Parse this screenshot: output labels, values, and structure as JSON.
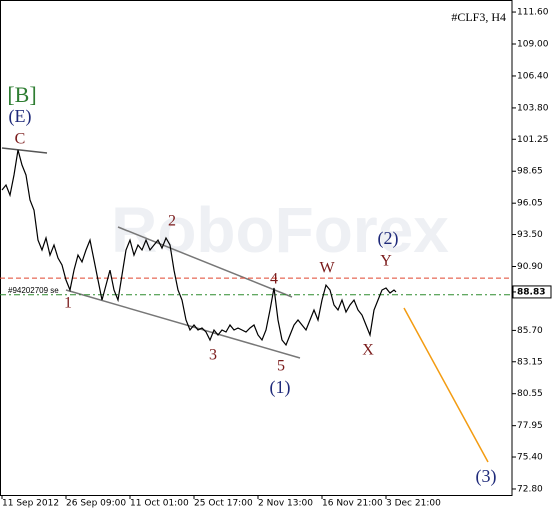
{
  "chart_data": {
    "type": "line",
    "title": "#CLF3, H4",
    "watermark": "RoboForex",
    "order_label": "#94202709 se",
    "color": "#000000",
    "x": [
      2,
      6,
      10,
      14,
      18,
      22,
      26,
      30,
      34,
      38,
      42,
      46,
      50,
      54,
      58,
      62,
      66,
      70,
      74,
      78,
      82,
      86,
      90,
      94,
      98,
      102,
      106,
      110,
      114,
      118,
      122,
      126,
      130,
      134,
      138,
      142,
      146,
      150,
      154,
      158,
      162,
      166,
      170,
      174,
      178,
      182,
      186,
      190,
      194,
      198,
      202,
      206,
      210,
      214,
      218,
      222,
      226,
      230,
      234,
      238,
      242,
      246,
      250,
      254,
      258,
      262,
      266,
      270,
      274,
      278,
      282,
      286,
      290,
      294,
      298,
      302,
      306,
      310,
      314,
      318,
      322,
      326,
      330,
      334,
      338,
      342,
      346,
      350,
      354,
      358,
      362,
      366,
      370,
      374,
      378,
      382,
      386,
      390,
      394,
      396
    ],
    "values": [
      97.12,
      97.53,
      96.71,
      98.34,
      100.38,
      99.16,
      98.34,
      96.31,
      95.49,
      93.05,
      92.24,
      93.22,
      91.83,
      92.65,
      91.59,
      91.02,
      89.8,
      88.99,
      90.61,
      91.83,
      91.27,
      92.24,
      93.05,
      91.43,
      89.8,
      88.17,
      89.39,
      90.61,
      88.99,
      88.17,
      90.21,
      92.24,
      93.05,
      91.83,
      92.65,
      92.24,
      93.05,
      92.24,
      92.65,
      93.05,
      92.4,
      93.22,
      92.65,
      90.61,
      88.99,
      88.17,
      86.55,
      85.73,
      86.14,
      85.73,
      85.9,
      85.57,
      84.92,
      85.73,
      85.33,
      85.73,
      85.57,
      86.14,
      85.73,
      85.9,
      85.73,
      85.57,
      85.9,
      86.14,
      85.33,
      84.92,
      85.73,
      87.36,
      89.15,
      86.55,
      84.92,
      84.51,
      85.33,
      86.14,
      86.55,
      86.14,
      85.73,
      86.55,
      87.36,
      86.55,
      88.17,
      89.39,
      88.99,
      87.77,
      87.36,
      88.17,
      87.2,
      87.77,
      88.17,
      87.36,
      86.95,
      86.14,
      85.33,
      87.36,
      88.17,
      88.99,
      89.15,
      88.74,
      88.99,
      88.83
    ],
    "current_price": 88.83,
    "levels": [
      {
        "value": 89.95,
        "color": "#e0452e"
      },
      {
        "value": 88.6,
        "color": "#2e8b2e"
      }
    ],
    "xlim": [
      0,
      512
    ],
    "xticks": [
      {
        "value": 2,
        "label": "11 Sep 2012"
      },
      {
        "value": 66,
        "label": "26 Sep 09:00"
      },
      {
        "value": 130,
        "label": "11 Oct 01:00"
      },
      {
        "value": 194,
        "label": "25 Oct 17:00"
      },
      {
        "value": 258,
        "label": "2 Nov 13:00"
      },
      {
        "value": 322,
        "label": "16 Nov 21:00"
      },
      {
        "value": 386,
        "label": "3 Dec 21:00"
      }
    ],
    "ylim": [
      72.31,
      112.58
    ],
    "yticks": [
      {
        "value": 111.6,
        "label": "111.60"
      },
      {
        "value": 109.0,
        "label": "109.00"
      },
      {
        "value": 106.4,
        "label": "106.40"
      },
      {
        "value": 103.8,
        "label": "103.80"
      },
      {
        "value": 101.25,
        "label": "101.25"
      },
      {
        "value": 98.65,
        "label": "98.65"
      },
      {
        "value": 96.05,
        "label": "96.05"
      },
      {
        "value": 93.5,
        "label": "93.50"
      },
      {
        "value": 90.9,
        "label": "90.90"
      },
      {
        "value": 85.7,
        "label": "85.70"
      },
      {
        "value": 83.15,
        "label": "83.15"
      },
      {
        "value": 80.55,
        "label": "80.55"
      },
      {
        "value": 77.95,
        "label": "77.95"
      },
      {
        "value": 75.4,
        "label": "75.40"
      },
      {
        "value": 72.8,
        "label": "72.80"
      }
    ],
    "annotations": [
      {
        "text": "[B]",
        "color": "#2e7d32"
      },
      {
        "text": "(E)",
        "color": "#1f2a7a"
      },
      {
        "text": "C",
        "color": "#7a1a1a"
      },
      {
        "text": "1",
        "color": "#7a1a1a"
      },
      {
        "text": "2",
        "color": "#7a1a1a"
      },
      {
        "text": "3",
        "color": "#7a1a1a"
      },
      {
        "text": "4",
        "color": "#7a1a1a"
      },
      {
        "text": "5",
        "color": "#7a1a1a"
      },
      {
        "text": "(1)",
        "color": "#1f2a7a"
      },
      {
        "text": "W",
        "color": "#7a1a1a"
      },
      {
        "text": "Y",
        "color": "#7a1a1a"
      },
      {
        "text": "(2)",
        "color": "#1f2a7a"
      },
      {
        "text": "X",
        "color": "#7a1a1a"
      },
      {
        "text": "(3)",
        "color": "#1f2a7a"
      }
    ]
  }
}
